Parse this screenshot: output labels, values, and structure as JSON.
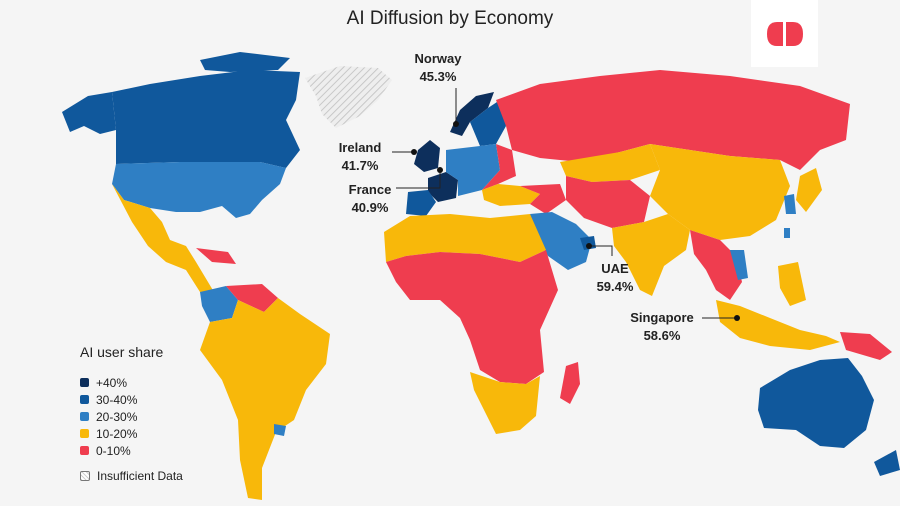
{
  "title": "AI Diffusion by Economy",
  "colors": {
    "over40": "#0d2f5c",
    "b30_40": "#10589c",
    "b20_30": "#2f7fc4",
    "b10_20": "#f8b80a",
    "b0_10": "#ef3d4f",
    "insufficient": "#d9d9d9",
    "logo": "#ef3d4f"
  },
  "callouts": [
    {
      "country": "Norway",
      "value": "45.3%"
    },
    {
      "country": "Ireland",
      "value": "41.7%"
    },
    {
      "country": "France",
      "value": "40.9%"
    },
    {
      "country": "UAE",
      "value": "59.4%"
    },
    {
      "country": "Singapore",
      "value": "58.6%"
    }
  ],
  "legend": {
    "title": "AI user share",
    "items": [
      {
        "label": "+40%",
        "color": "#0d2f5c"
      },
      {
        "label": "30-40%",
        "color": "#10589c"
      },
      {
        "label": "20-30%",
        "color": "#2f7fc4"
      },
      {
        "label": "10-20%",
        "color": "#f8b80a"
      },
      {
        "label": "0-10%",
        "color": "#ef3d4f"
      }
    ],
    "insufficient_label": "Insufficient Data"
  }
}
